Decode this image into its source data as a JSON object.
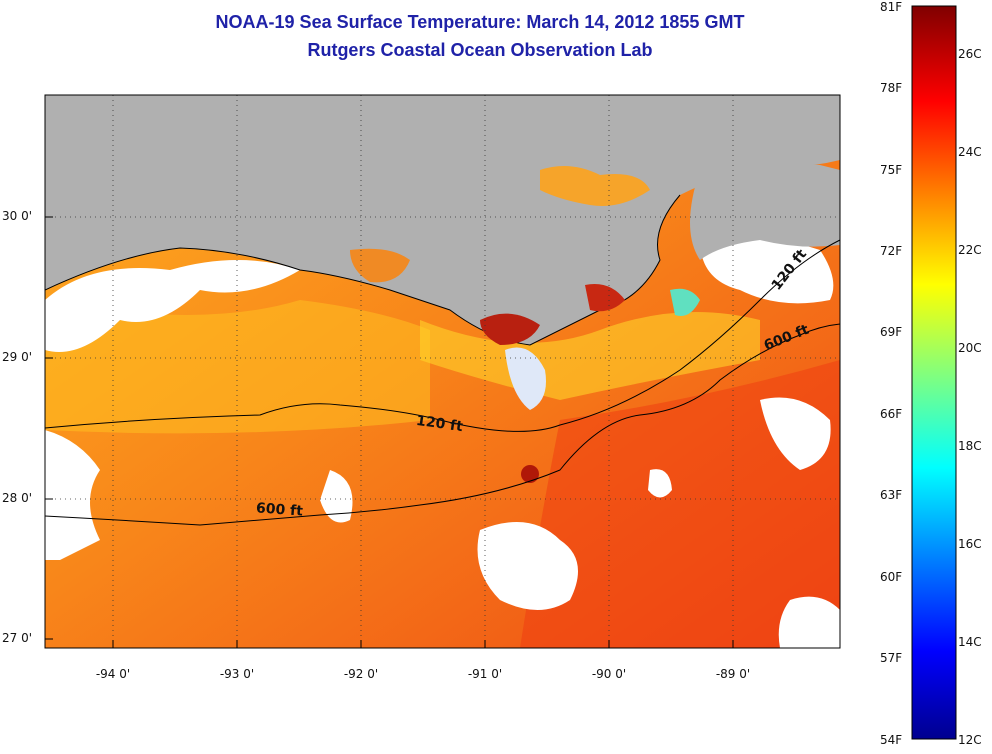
{
  "title": "NOAA-19 Sea Surface Temperature:  March 14, 2012 1855 GMT",
  "subtitle": "Rutgers Coastal Ocean Observation Lab",
  "map": {
    "lat_ticks": [
      "30 0'",
      "29 0'",
      "28 0'",
      "27 0'"
    ],
    "lon_ticks": [
      "-94 0'",
      "-93 0'",
      "-92 0'",
      "-91 0'",
      "-90 0'",
      "-89 0'"
    ],
    "contour_labels": [
      "120 ft",
      "600 ft",
      "120 ft",
      "600 ft"
    ],
    "colors": {
      "land": "#b0b0b0",
      "cloud": "#ffffff",
      "water_warm": "#f26a18",
      "water_mid": "#f8a21a",
      "water_cool": "#ffcf20"
    }
  },
  "colorbar": {
    "fahrenheit": [
      "81F",
      "78F",
      "75F",
      "72F",
      "69F",
      "66F",
      "63F",
      "60F",
      "57F",
      "54F"
    ],
    "celsius": [
      "26C",
      "24C",
      "22C",
      "20C",
      "18C",
      "16C",
      "14C",
      "12C"
    ]
  }
}
